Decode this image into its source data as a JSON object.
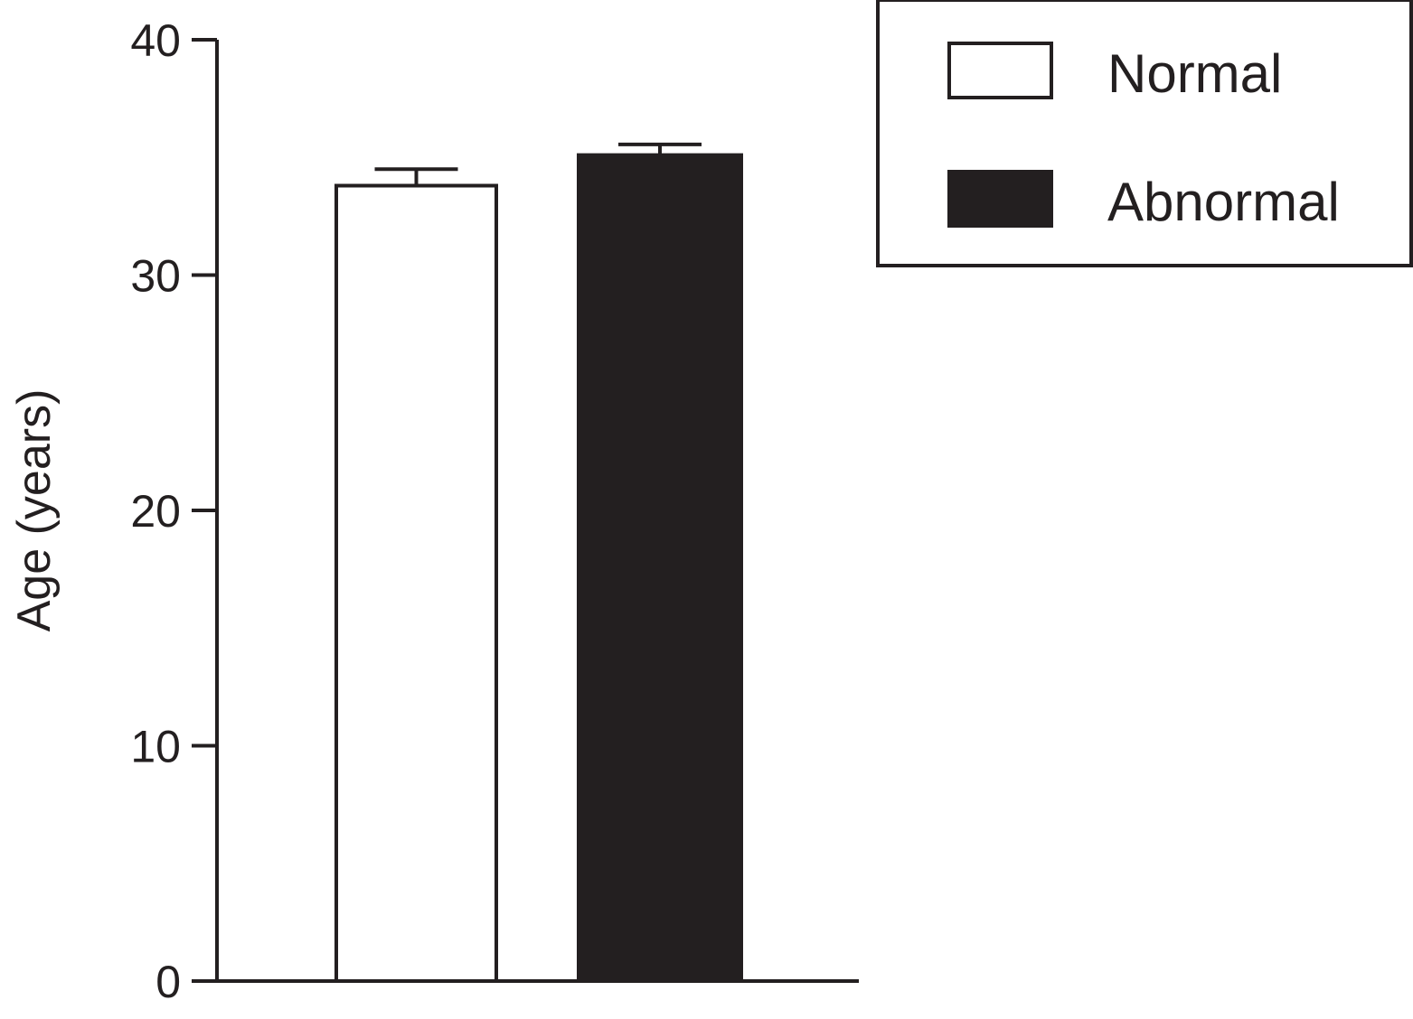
{
  "chart_data": {
    "type": "bar",
    "title": "",
    "xlabel": "",
    "ylabel": "Age (years)",
    "ylim": [
      0,
      40
    ],
    "yticks": [
      0,
      10,
      20,
      30,
      40
    ],
    "grid": false,
    "legend_position": "top-right",
    "categories": [
      "Normal",
      "Abnormal"
    ],
    "series": [
      {
        "name": "Normal",
        "value": 33.8,
        "error": 0.7,
        "fill": "#ffffff",
        "stroke": "#231f20"
      },
      {
        "name": "Abnormal",
        "value": 35.1,
        "error": 0.45,
        "fill": "#231f20",
        "stroke": "#231f20"
      }
    ]
  }
}
